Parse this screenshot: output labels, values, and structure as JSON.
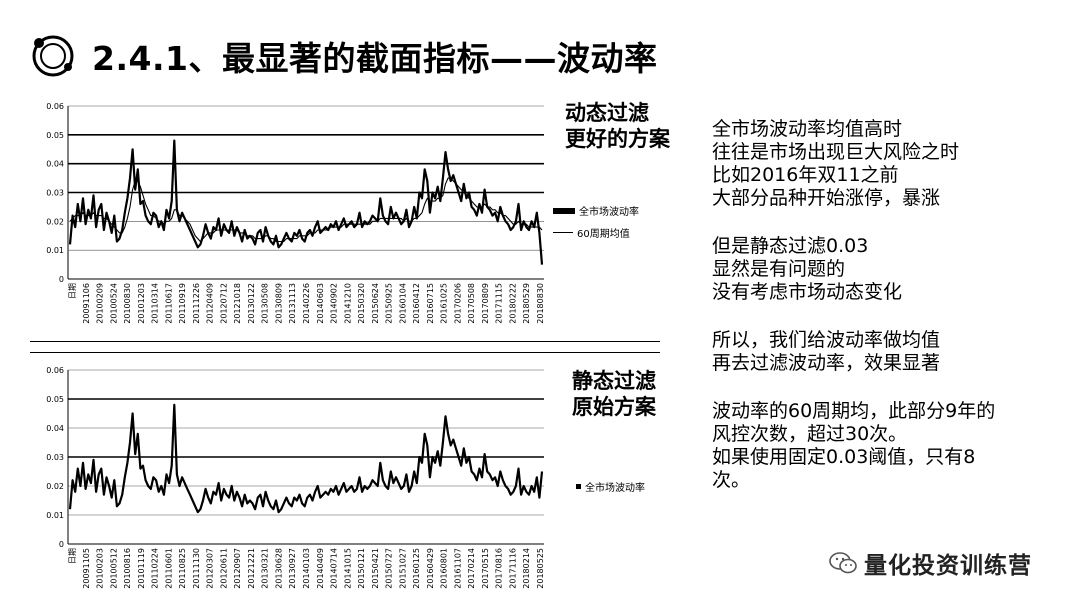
{
  "title": "2.4.1、最显著的截面指标——波动率",
  "labels": {
    "top": [
      "动态过滤",
      "更好的方案"
    ],
    "bottom": [
      "静态过滤",
      "原始方案"
    ]
  },
  "notes": [
    [
      "全市场波动率均值高时",
      "往往是市场出现巨大风险之时",
      "比如2016年双11之前",
      "大部分品种开始涨停，暴涨"
    ],
    [
      "但是静态过滤0.03",
      "显然是有问题的",
      "没有考虑市场动态变化"
    ],
    [
      "所以，我们给波动率做均值",
      "再去过滤波动率，效果显著"
    ],
    [
      "波动率的60周期均，此部分9年的",
      "风控次数，超过30次。",
      "如果使用固定0.03阈值，只有8",
      "次。"
    ]
  ],
  "watermark": "量化投资训练营",
  "chart_data": [
    {
      "type": "line",
      "ylim": [
        0,
        0.06
      ],
      "yticks": [
        "0",
        "0.01",
        "0.02",
        "0.03",
        "0.04",
        "0.05",
        "0.06"
      ],
      "xtick_labels": [
        "日期",
        "20091106",
        "20100209",
        "20100524",
        "20100830",
        "20101203",
        "20110314",
        "20110617",
        "20110919",
        "20111226",
        "20120409",
        "20120712",
        "20121018",
        "20130122",
        "20130508",
        "20130809",
        "20131113",
        "20140226",
        "20140603",
        "20140902",
        "20141210",
        "20150320",
        "20150624",
        "20150925",
        "20160104",
        "20160412",
        "20160715",
        "20161025",
        "20170206",
        "20170508",
        "20170809",
        "20171115",
        "20180222",
        "20180529",
        "20180830"
      ],
      "series": [
        {
          "name": "全市场波动率",
          "values": [
            0.012,
            0.022,
            0.018,
            0.026,
            0.02,
            0.028,
            0.019,
            0.024,
            0.021,
            0.029,
            0.018,
            0.024,
            0.026,
            0.017,
            0.023,
            0.02,
            0.016,
            0.022,
            0.013,
            0.014,
            0.017,
            0.023,
            0.028,
            0.035,
            0.045,
            0.031,
            0.038,
            0.026,
            0.027,
            0.022,
            0.02,
            0.019,
            0.023,
            0.022,
            0.018,
            0.02,
            0.017,
            0.024,
            0.021,
            0.027,
            0.048,
            0.024,
            0.02,
            0.023,
            0.021,
            0.019,
            0.017,
            0.015,
            0.013,
            0.011,
            0.012,
            0.015,
            0.019,
            0.016,
            0.014,
            0.018,
            0.017,
            0.021,
            0.015,
            0.019,
            0.017,
            0.016,
            0.02,
            0.015,
            0.018,
            0.016,
            0.013,
            0.017,
            0.014,
            0.015,
            0.014,
            0.012,
            0.016,
            0.017,
            0.013,
            0.018,
            0.015,
            0.013,
            0.012,
            0.015,
            0.011,
            0.012,
            0.014,
            0.016,
            0.014,
            0.013,
            0.016,
            0.015,
            0.017,
            0.014,
            0.013,
            0.016,
            0.017,
            0.015,
            0.018,
            0.02,
            0.016,
            0.017,
            0.018,
            0.017,
            0.019,
            0.018,
            0.02,
            0.017,
            0.019,
            0.021,
            0.018,
            0.019,
            0.02,
            0.018,
            0.019,
            0.023,
            0.018,
            0.02,
            0.019,
            0.02,
            0.022,
            0.021,
            0.02,
            0.028,
            0.022,
            0.02,
            0.019,
            0.025,
            0.021,
            0.023,
            0.021,
            0.019,
            0.02,
            0.024,
            0.018,
            0.02,
            0.025,
            0.021,
            0.03,
            0.028,
            0.038,
            0.034,
            0.023,
            0.03,
            0.028,
            0.032,
            0.027,
            0.035,
            0.044,
            0.038,
            0.034,
            0.036,
            0.033,
            0.03,
            0.027,
            0.033,
            0.028,
            0.03,
            0.025,
            0.024,
            0.022,
            0.026,
            0.023,
            0.031,
            0.025,
            0.024,
            0.022,
            0.023,
            0.02,
            0.025,
            0.022,
            0.02,
            0.019,
            0.017,
            0.018,
            0.02,
            0.026,
            0.017,
            0.02,
            0.018,
            0.017,
            0.02,
            0.018,
            0.023,
            0.016,
            0.005
          ]
        },
        {
          "name": "60周期均值",
          "values": [
            0.02,
            0.021,
            0.022,
            0.022,
            0.022,
            0.023,
            0.022,
            0.022,
            0.022,
            0.023,
            0.022,
            0.022,
            0.022,
            0.021,
            0.021,
            0.02,
            0.019,
            0.018,
            0.017,
            0.016,
            0.016,
            0.018,
            0.021,
            0.025,
            0.031,
            0.034,
            0.034,
            0.032,
            0.029,
            0.026,
            0.024,
            0.022,
            0.022,
            0.021,
            0.02,
            0.02,
            0.019,
            0.02,
            0.02,
            0.021,
            0.024,
            0.024,
            0.022,
            0.022,
            0.021,
            0.02,
            0.019,
            0.017,
            0.015,
            0.014,
            0.013,
            0.014,
            0.015,
            0.016,
            0.016,
            0.016,
            0.017,
            0.017,
            0.017,
            0.017,
            0.017,
            0.017,
            0.017,
            0.017,
            0.017,
            0.016,
            0.016,
            0.016,
            0.015,
            0.015,
            0.015,
            0.014,
            0.014,
            0.014,
            0.014,
            0.015,
            0.015,
            0.014,
            0.014,
            0.013,
            0.013,
            0.013,
            0.013,
            0.014,
            0.014,
            0.014,
            0.014,
            0.014,
            0.015,
            0.015,
            0.015,
            0.015,
            0.016,
            0.016,
            0.016,
            0.017,
            0.017,
            0.017,
            0.017,
            0.017,
            0.018,
            0.018,
            0.018,
            0.018,
            0.018,
            0.019,
            0.019,
            0.019,
            0.019,
            0.019,
            0.019,
            0.019,
            0.019,
            0.019,
            0.019,
            0.019,
            0.02,
            0.02,
            0.02,
            0.021,
            0.021,
            0.021,
            0.021,
            0.021,
            0.021,
            0.021,
            0.021,
            0.021,
            0.02,
            0.021,
            0.02,
            0.02,
            0.021,
            0.021,
            0.022,
            0.023,
            0.026,
            0.028,
            0.027,
            0.027,
            0.027,
            0.028,
            0.028,
            0.029,
            0.033,
            0.035,
            0.035,
            0.034,
            0.033,
            0.032,
            0.031,
            0.03,
            0.029,
            0.028,
            0.027,
            0.026,
            0.025,
            0.025,
            0.025,
            0.026,
            0.025,
            0.025,
            0.024,
            0.024,
            0.023,
            0.023,
            0.022,
            0.022,
            0.021,
            0.02,
            0.019,
            0.019,
            0.02,
            0.019,
            0.019,
            0.019,
            0.018,
            0.018,
            0.018,
            0.018,
            0.018,
            0.017
          ]
        }
      ],
      "thresholds": [
        0.03,
        0.04,
        0.05
      ]
    },
    {
      "type": "line",
      "ylim": [
        0,
        0.06
      ],
      "yticks": [
        "0",
        "0.01",
        "0.02",
        "0.03",
        "0.04",
        "0.05",
        "0.06"
      ],
      "xtick_labels": [
        "日期",
        "20091105",
        "20100203",
        "20100512",
        "20100816",
        "20101119",
        "20110224",
        "20110601",
        "20110825",
        "20111130",
        "20120307",
        "20120611",
        "20120907",
        "20121221",
        "20130321",
        "20130628",
        "20130927",
        "20140103",
        "20140409",
        "20140714",
        "20141015",
        "20150121",
        "20150421",
        "20150727",
        "20151027",
        "20160125",
        "20160429",
        "20160801",
        "20161107",
        "20170214",
        "20170515",
        "20170816",
        "20171116",
        "20180214",
        "20180525"
      ],
      "series": [
        {
          "name": "全市场波动率",
          "values": [
            0.012,
            0.022,
            0.018,
            0.026,
            0.02,
            0.028,
            0.019,
            0.024,
            0.021,
            0.029,
            0.018,
            0.024,
            0.026,
            0.017,
            0.023,
            0.02,
            0.016,
            0.022,
            0.013,
            0.014,
            0.017,
            0.023,
            0.028,
            0.035,
            0.045,
            0.031,
            0.038,
            0.026,
            0.027,
            0.022,
            0.02,
            0.019,
            0.023,
            0.022,
            0.018,
            0.02,
            0.017,
            0.024,
            0.021,
            0.027,
            0.048,
            0.024,
            0.02,
            0.023,
            0.021,
            0.019,
            0.017,
            0.015,
            0.013,
            0.011,
            0.012,
            0.015,
            0.019,
            0.016,
            0.014,
            0.018,
            0.017,
            0.021,
            0.015,
            0.019,
            0.017,
            0.016,
            0.02,
            0.015,
            0.018,
            0.016,
            0.013,
            0.017,
            0.014,
            0.015,
            0.014,
            0.012,
            0.016,
            0.017,
            0.013,
            0.018,
            0.015,
            0.013,
            0.012,
            0.015,
            0.011,
            0.012,
            0.014,
            0.016,
            0.014,
            0.013,
            0.016,
            0.015,
            0.017,
            0.014,
            0.013,
            0.016,
            0.017,
            0.015,
            0.018,
            0.02,
            0.016,
            0.017,
            0.018,
            0.017,
            0.019,
            0.018,
            0.02,
            0.017,
            0.019,
            0.021,
            0.018,
            0.019,
            0.02,
            0.018,
            0.019,
            0.023,
            0.018,
            0.02,
            0.019,
            0.02,
            0.022,
            0.021,
            0.02,
            0.028,
            0.022,
            0.02,
            0.019,
            0.025,
            0.021,
            0.023,
            0.021,
            0.019,
            0.02,
            0.024,
            0.018,
            0.02,
            0.025,
            0.021,
            0.03,
            0.028,
            0.038,
            0.034,
            0.023,
            0.03,
            0.028,
            0.032,
            0.027,
            0.035,
            0.044,
            0.038,
            0.034,
            0.036,
            0.033,
            0.03,
            0.027,
            0.033,
            0.028,
            0.03,
            0.025,
            0.024,
            0.022,
            0.026,
            0.023,
            0.031,
            0.025,
            0.024,
            0.022,
            0.023,
            0.02,
            0.025,
            0.022,
            0.02,
            0.019,
            0.017,
            0.018,
            0.02,
            0.026,
            0.017,
            0.02,
            0.018,
            0.017,
            0.02,
            0.018,
            0.023,
            0.016,
            0.025
          ]
        }
      ],
      "thresholds": [
        0.03,
        0.05
      ]
    }
  ]
}
